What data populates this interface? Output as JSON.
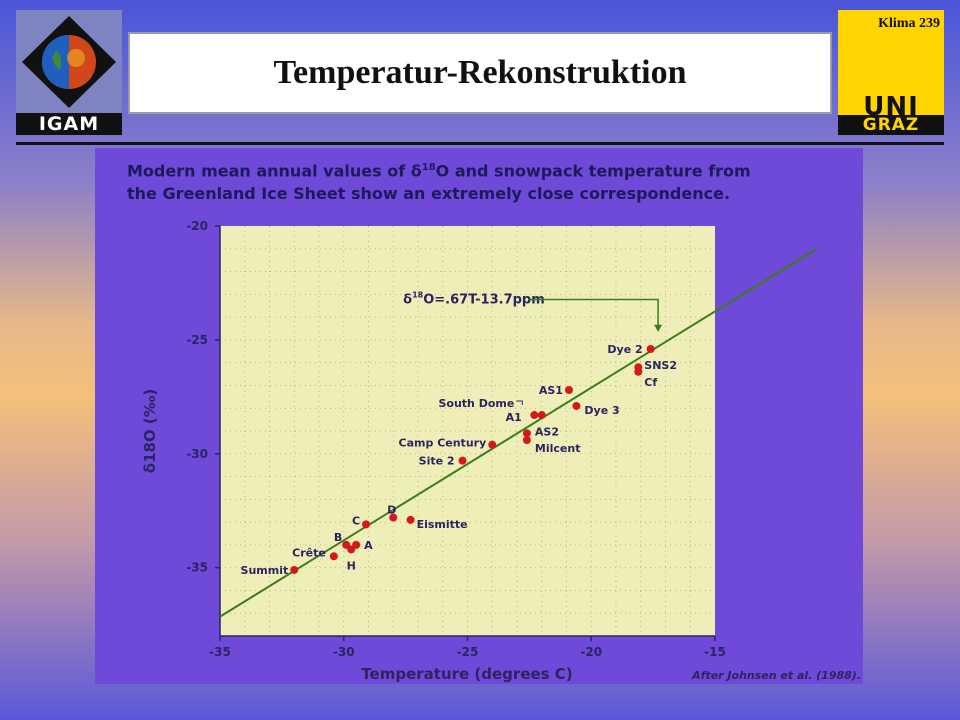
{
  "header": {
    "title": "Temperatur-Rekonstruktion",
    "slide_label": "Klima  239",
    "left_logo_text": "IGAM",
    "right_logo_line1": "UNI",
    "right_logo_line2": "GRAZ"
  },
  "caption": {
    "line1_a": "Modern mean annual values of δ",
    "line1_sup": "18",
    "line1_b": "O and snowpack temperature from",
    "line2": "the Greenland Ice Sheet show an extremely close correspondence."
  },
  "chart_data": {
    "type": "scatter",
    "xlabel": "Temperature (degrees C)",
    "ylabel": "δ18O (‰)",
    "xlim": [
      -35,
      -15
    ],
    "ylim": [
      -38,
      -20
    ],
    "x_ticks": [
      -35,
      -30,
      -25,
      -20,
      -15
    ],
    "y_ticks": [
      -20,
      -25,
      -30,
      -35
    ],
    "x_tick_labels": [
      "-35",
      "-30",
      "-25",
      "-20",
      "-15"
    ],
    "y_tick_labels": [
      "-20",
      "-25",
      "-30",
      "-35"
    ],
    "regression": {
      "label": "O=.67T-13.7ppm",
      "label_prefix": "δ",
      "label_sup": "18",
      "slope": 0.67,
      "intercept": -13.7
    },
    "credit": "After Johnsen et al. (1988).",
    "background": "#efeeb8",
    "point_color": "#d21a1a",
    "line_color": "#3a7d1a",
    "points": [
      {
        "name": "Summit",
        "x": -32.0,
        "y": -35.1
      },
      {
        "name": "Crête",
        "x": -30.4,
        "y": -34.5
      },
      {
        "name": "B",
        "x": -29.9,
        "y": -34.0
      },
      {
        "name": "H",
        "x": -29.7,
        "y": -34.2
      },
      {
        "name": "A",
        "x": -29.5,
        "y": -34.0
      },
      {
        "name": "C",
        "x": -29.1,
        "y": -33.1
      },
      {
        "name": "D",
        "x": -28.0,
        "y": -32.8
      },
      {
        "name": "Eismitte",
        "x": -27.3,
        "y": -32.9
      },
      {
        "name": "Site 2",
        "x": -25.2,
        "y": -30.3
      },
      {
        "name": "Camp Century",
        "x": -24.0,
        "y": -29.6
      },
      {
        "name": "South Dome",
        "x": -22.3,
        "y": -28.3
      },
      {
        "name": "A1",
        "x": -22.0,
        "y": -28.3
      },
      {
        "name": "AS2",
        "x": -22.6,
        "y": -29.1
      },
      {
        "name": "Milcent",
        "x": -22.6,
        "y": -29.4
      },
      {
        "name": "AS1",
        "x": -20.9,
        "y": -27.2
      },
      {
        "name": "Dye 3",
        "x": -20.6,
        "y": -27.9
      },
      {
        "name": "SNS2",
        "x": -18.1,
        "y": -26.2
      },
      {
        "name": "Cf",
        "x": -18.1,
        "y": -26.4
      },
      {
        "name": "Dye 2",
        "x": -17.6,
        "y": -25.4
      }
    ]
  }
}
